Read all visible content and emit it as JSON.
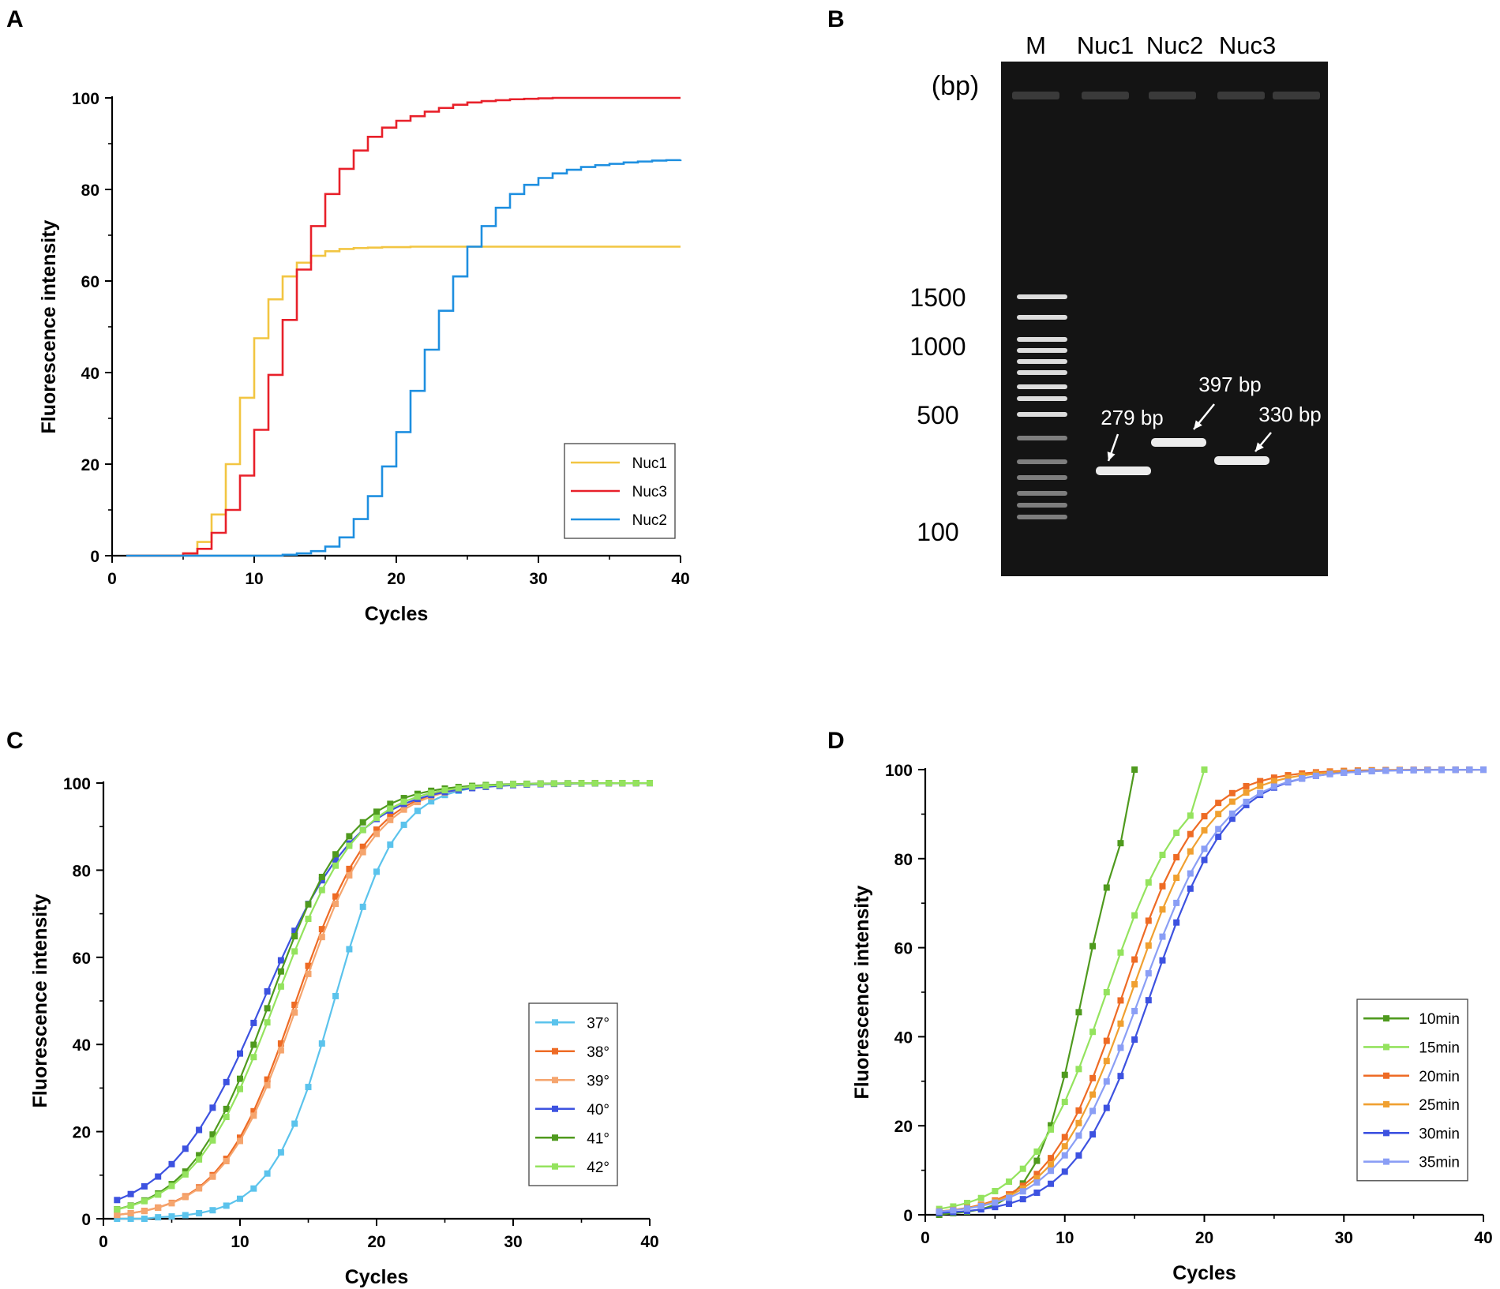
{
  "panels": {
    "a": {
      "label": "A"
    },
    "b": {
      "label": "B"
    },
    "c": {
      "label": "C"
    },
    "d": {
      "label": "D"
    }
  },
  "chart_data": [
    {
      "panel": "A",
      "type": "line",
      "title": "",
      "xlabel": "Cycles",
      "ylabel": "Fluorescence intensity",
      "xlim": [
        0,
        40
      ],
      "ylim": [
        0,
        100
      ],
      "xticks": [
        0,
        10,
        20,
        30,
        40
      ],
      "yticks": [
        0,
        20,
        40,
        60,
        80,
        100
      ],
      "step": true,
      "legend": "bottom-right",
      "series": [
        {
          "name": "Nuc1",
          "color": "#f2c542",
          "x": [
            1,
            2,
            3,
            4,
            5,
            6,
            7,
            8,
            9,
            10,
            11,
            12,
            13,
            14,
            15,
            16,
            17,
            18,
            19,
            20,
            21,
            22,
            23,
            24,
            25,
            26,
            27,
            28,
            29,
            30,
            31,
            32,
            33,
            34,
            35,
            36,
            37,
            38,
            39,
            40
          ],
          "y": [
            0,
            0,
            0,
            0,
            0.5,
            3,
            9,
            20,
            34.5,
            47.5,
            56,
            61,
            64,
            65.5,
            66.5,
            67,
            67.2,
            67.3,
            67.4,
            67.4,
            67.5,
            67.5,
            67.5,
            67.5,
            67.5,
            67.5,
            67.5,
            67.5,
            67.5,
            67.5,
            67.5,
            67.5,
            67.5,
            67.5,
            67.5,
            67.5,
            67.5,
            67.5,
            67.5,
            67.5
          ]
        },
        {
          "name": "Nuc3",
          "color": "#e8202a",
          "x": [
            1,
            2,
            3,
            4,
            5,
            6,
            7,
            8,
            9,
            10,
            11,
            12,
            13,
            14,
            15,
            16,
            17,
            18,
            19,
            20,
            21,
            22,
            23,
            24,
            25,
            26,
            27,
            28,
            29,
            30,
            31,
            32,
            33,
            34,
            35,
            36,
            37,
            38,
            39,
            40
          ],
          "y": [
            0,
            0,
            0,
            0,
            0.5,
            1.5,
            5,
            10,
            17.5,
            27.5,
            39.5,
            51.5,
            62.5,
            72,
            79,
            84.5,
            88.5,
            91.5,
            93.5,
            95,
            96,
            97,
            97.8,
            98.5,
            99,
            99.3,
            99.5,
            99.7,
            99.8,
            99.9,
            100,
            100,
            100,
            100,
            100,
            100,
            100,
            100,
            100,
            100
          ]
        },
        {
          "name": "Nuc2",
          "color": "#1e8fe0",
          "x": [
            1,
            2,
            3,
            4,
            5,
            6,
            7,
            8,
            9,
            10,
            11,
            12,
            13,
            14,
            15,
            16,
            17,
            18,
            19,
            20,
            21,
            22,
            23,
            24,
            25,
            26,
            27,
            28,
            29,
            30,
            31,
            32,
            33,
            34,
            35,
            36,
            37,
            38,
            39,
            40
          ],
          "y": [
            0,
            0,
            0,
            0,
            0,
            0,
            0,
            0,
            0,
            0,
            0,
            0.2,
            0.5,
            1,
            2,
            4,
            8,
            13,
            19.5,
            27,
            36,
            45,
            53.5,
            61,
            67.5,
            72,
            76,
            79,
            81,
            82.5,
            83.5,
            84.3,
            84.9,
            85.3,
            85.6,
            85.9,
            86.1,
            86.3,
            86.4,
            86.5
          ]
        }
      ]
    },
    {
      "panel": "B",
      "type": "gel",
      "header": "(bp)",
      "lanes": [
        "M",
        "Nuc1",
        "Nuc2",
        "Nuc3"
      ],
      "marker_labels": [
        "1500",
        "1000",
        "500",
        "100"
      ],
      "marker_bands_bp": [
        1500,
        1300,
        1000,
        900,
        800,
        700,
        600,
        500,
        400,
        300,
        200,
        150,
        100
      ],
      "bands": [
        {
          "lane": "Nuc1",
          "size_bp": 279,
          "label": "279 bp"
        },
        {
          "lane": "Nuc2",
          "size_bp": 397,
          "label": "397 bp"
        },
        {
          "lane": "Nuc3",
          "size_bp": 330,
          "label": "330 bp"
        }
      ]
    },
    {
      "panel": "C",
      "type": "line",
      "title": "",
      "xlabel": "Cycles",
      "ylabel": "Fluorescence intensity",
      "xlim": [
        0,
        40
      ],
      "ylim": [
        0,
        100
      ],
      "xticks": [
        0,
        10,
        20,
        30,
        40
      ],
      "yticks": [
        0,
        20,
        40,
        60,
        80,
        100
      ],
      "markers": true,
      "legend": "right-middle",
      "series": [
        {
          "name": "37°",
          "color": "#5bc3ec",
          "mid": 16.9,
          "k": 0.44
        },
        {
          "name": "38°",
          "color": "#ee6b25",
          "mid": 14.1,
          "k": 0.36
        },
        {
          "name": "39°",
          "color": "#f5a56e",
          "mid": 14.3,
          "k": 0.355
        },
        {
          "name": "40°",
          "color": "#3d52e0",
          "mid": 11.7,
          "k": 0.29
        },
        {
          "name": "41°",
          "color": "#4f9a1e",
          "mid": 12.2,
          "k": 0.34
        },
        {
          "name": "42°",
          "color": "#94e35e",
          "mid": 12.6,
          "k": 0.33
        }
      ]
    },
    {
      "panel": "D",
      "type": "line",
      "title": "",
      "xlabel": "Cycles",
      "ylabel": "Fluorescence intensity",
      "xlim": [
        0,
        40
      ],
      "ylim": [
        0,
        100
      ],
      "xticks": [
        0,
        10,
        20,
        30,
        40
      ],
      "yticks": [
        0,
        20,
        40,
        60,
        80,
        100
      ],
      "markers": true,
      "legend": "right-middle",
      "series": [
        {
          "name": "10min",
          "color": "#4f9a1e",
          "mid": 11.3,
          "k": 0.6,
          "xmax": 14
        },
        {
          "name": "15min",
          "color": "#94e35e",
          "mid": 13.0,
          "k": 0.36,
          "xmax": 19
        },
        {
          "name": "20min",
          "color": "#ee6b25",
          "mid": 14.2,
          "k": 0.37,
          "xmax": 40
        },
        {
          "name": "25min",
          "color": "#f0a030",
          "mid": 14.8,
          "k": 0.355,
          "xmax": 40
        },
        {
          "name": "30min",
          "color": "#3d52e0",
          "mid": 16.2,
          "k": 0.36,
          "xmax": 40
        },
        {
          "name": "35min",
          "color": "#8a9ef5",
          "mid": 15.5,
          "k": 0.34,
          "xmax": 40
        }
      ]
    }
  ]
}
